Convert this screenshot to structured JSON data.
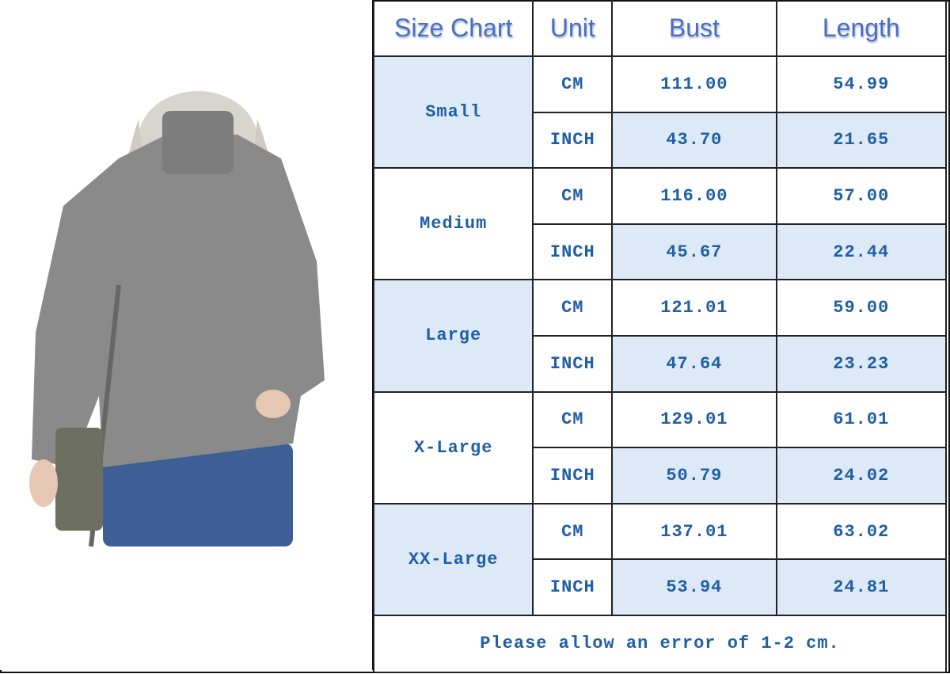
{
  "header": {
    "size_chart": "Size Chart",
    "unit": "Unit",
    "bust": "Bust",
    "length": "Length"
  },
  "rows": [
    {
      "size": "Small",
      "cm": {
        "unit": "CM",
        "bust": "111.00",
        "length": "54.99"
      },
      "inch": {
        "unit": "INCH",
        "bust": "43.70",
        "length": "21.65"
      }
    },
    {
      "size": "Medium",
      "cm": {
        "unit": "CM",
        "bust": "116.00",
        "length": "57.00"
      },
      "inch": {
        "unit": "INCH",
        "bust": "45.67",
        "length": "22.44"
      }
    },
    {
      "size": "Large",
      "cm": {
        "unit": "CM",
        "bust": "121.01",
        "length": "59.00"
      },
      "inch": {
        "unit": "INCH",
        "bust": "47.64",
        "length": "23.23"
      }
    },
    {
      "size": "X-Large",
      "cm": {
        "unit": "CM",
        "bust": "129.01",
        "length": "61.01"
      },
      "inch": {
        "unit": "INCH",
        "bust": "50.79",
        "length": "24.02"
      }
    },
    {
      "size": "XX-Large",
      "cm": {
        "unit": "CM",
        "bust": "137.01",
        "length": "63.02"
      },
      "inch": {
        "unit": "INCH",
        "bust": "53.94",
        "length": "24.81"
      }
    }
  ],
  "footer": {
    "note": "Please allow an error of 1-2 cm."
  },
  "colors": {
    "text": "#1f5fa6",
    "header_text": "#4a6fc0",
    "shade": "#dde9f6",
    "sweater": "#8a8a8a"
  }
}
